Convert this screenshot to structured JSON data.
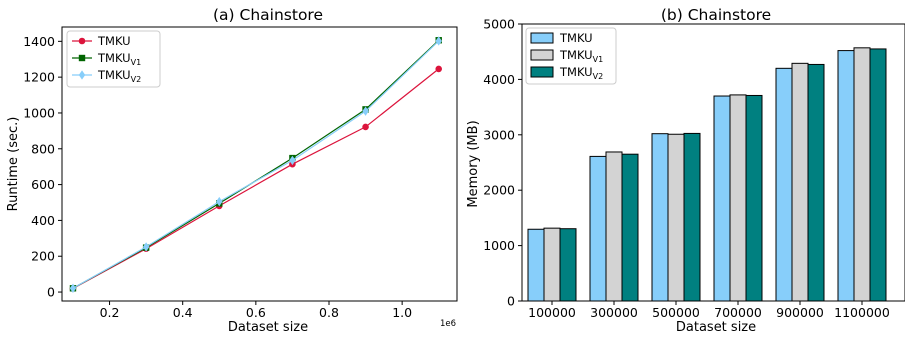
{
  "chart_data": [
    {
      "type": "line",
      "title": "(a) Chainstore",
      "xlabel": "Dataset size",
      "ylabel": "Runtime (sec.)",
      "x_offset_label": "1e6",
      "xlim": [
        0.07,
        1.15
      ],
      "ylim": [
        -50,
        1480
      ],
      "xticks": [
        0.2,
        0.4,
        0.6,
        0.8,
        1.0
      ],
      "xtick_labels": [
        "0.2",
        "0.4",
        "0.6",
        "0.8",
        "1.0"
      ],
      "yticks": [
        0,
        200,
        400,
        600,
        800,
        1000,
        1200,
        1400
      ],
      "yticks_labels": [
        "0",
        "200",
        "400",
        "600",
        "800",
        "1000",
        "1200",
        "1400"
      ],
      "x": [
        0.1,
        0.3,
        0.5,
        0.7,
        0.9,
        1.1
      ],
      "legend_position": "top-left",
      "series": [
        {
          "name": "TMKU",
          "name_sub": "",
          "color": "#dc143c",
          "marker": "circle",
          "values": [
            20,
            242,
            481,
            714,
            922,
            1246
          ]
        },
        {
          "name": "TMKU",
          "name_sub": "V1",
          "color": "#006400",
          "marker": "square",
          "values": [
            21,
            248,
            495,
            748,
            1020,
            1406
          ]
        },
        {
          "name": "TMKU",
          "name_sub": "V2",
          "color": "#87cefa",
          "marker": "diamond",
          "values": [
            21,
            252,
            505,
            735,
            1010,
            1402
          ]
        }
      ]
    },
    {
      "type": "bar",
      "title": "(b) Chainstore",
      "xlabel": "Dataset size",
      "ylabel": "Memory (MB)",
      "categories": [
        "100000",
        "300000",
        "500000",
        "700000",
        "900000",
        "1100000"
      ],
      "ylim": [
        0,
        5000
      ],
      "yticks": [
        0,
        1000,
        2000,
        3000,
        4000,
        5000
      ],
      "yticks_labels": [
        "0",
        "1000",
        "2000",
        "3000",
        "4000",
        "5000"
      ],
      "legend_position": "top-left",
      "series": [
        {
          "name": "TMKU",
          "name_sub": "",
          "color": "#87cefa",
          "values": [
            1295,
            2610,
            3020,
            3700,
            4200,
            4520
          ]
        },
        {
          "name": "TMKU",
          "name_sub": "V1",
          "color": "#d3d3d3",
          "values": [
            1315,
            2690,
            3010,
            3720,
            4290,
            4570
          ]
        },
        {
          "name": "TMKU",
          "name_sub": "V2",
          "color": "#008080",
          "values": [
            1305,
            2650,
            3025,
            3710,
            4270,
            4550
          ]
        }
      ]
    }
  ]
}
